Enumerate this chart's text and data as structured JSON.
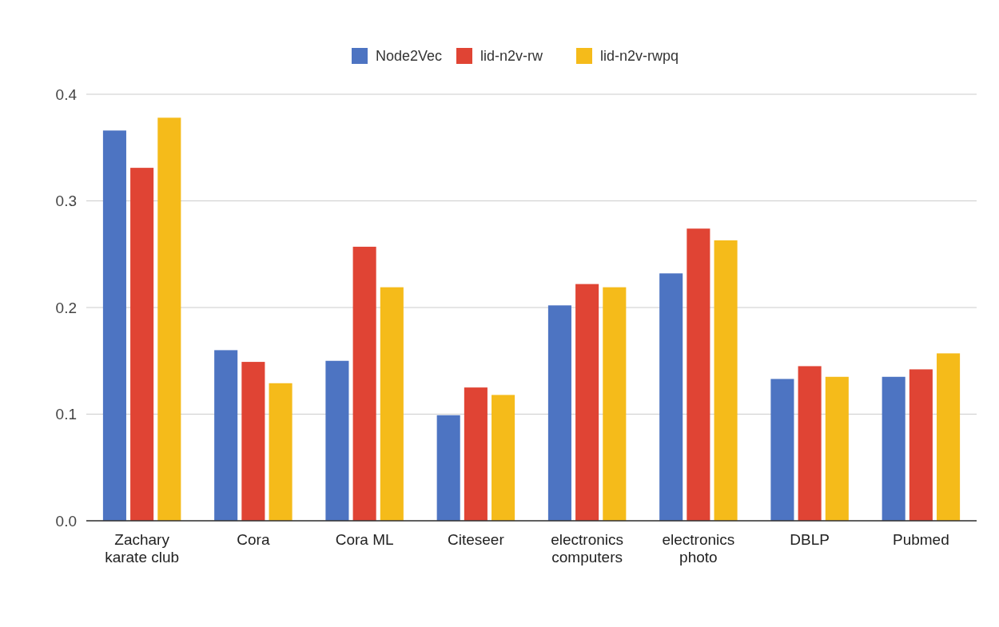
{
  "chart_data": {
    "type": "bar",
    "categories": [
      "Zachary karate club",
      "Cora",
      "Cora ML",
      "Citeseer",
      "electronics computers",
      "electronics photo",
      "DBLP",
      "Pubmed"
    ],
    "series": [
      {
        "name": "Node2Vec",
        "color": "#4d74c2",
        "values": [
          0.366,
          0.16,
          0.15,
          0.099,
          0.202,
          0.232,
          0.133,
          0.135
        ]
      },
      {
        "name": "lid-n2v-rw",
        "color": "#e04434",
        "values": [
          0.331,
          0.149,
          0.257,
          0.125,
          0.222,
          0.274,
          0.145,
          0.142
        ]
      },
      {
        "name": "lid-n2v-rwpq",
        "color": "#f5bb1a",
        "values": [
          0.378,
          0.129,
          0.219,
          0.118,
          0.219,
          0.263,
          0.135,
          0.157
        ]
      }
    ],
    "ylim": [
      0,
      0.4
    ],
    "yticks": [
      {
        "value": 0,
        "label": "0.0"
      },
      0.1,
      0.2,
      0.3,
      0.4
    ],
    "grid": "y",
    "legend": "top"
  }
}
